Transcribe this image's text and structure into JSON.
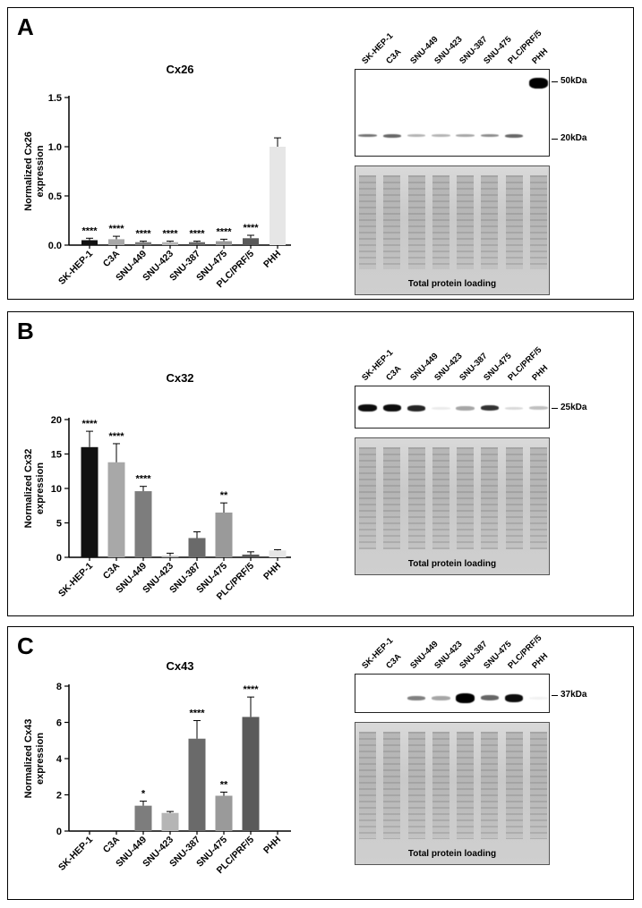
{
  "panels": [
    {
      "letter": "A",
      "blot": {
        "lanes": [
          "SK-HEP-1",
          "C3A",
          "SNU-449",
          "SNU-423",
          "SNU-387",
          "SNU-475",
          "PLC/PRF/5",
          "PHH"
        ],
        "markers": [
          "50kDa",
          "20kDa"
        ],
        "loading_label": "Total protein loading"
      }
    },
    {
      "letter": "B",
      "blot": {
        "lanes": [
          "SK-HEP-1",
          "C3A",
          "SNU-449",
          "SNU-423",
          "SNU-387",
          "SNU-475",
          "PLC/PRF/5",
          "PHH"
        ],
        "markers": [
          "25kDa"
        ],
        "loading_label": "Total protein loading"
      }
    },
    {
      "letter": "C",
      "blot": {
        "lanes": [
          "SK-HEP-1",
          "C3A",
          "SNU-449",
          "SNU-423",
          "SNU-387",
          "SNU-475",
          "PLC/PRF/5",
          "PHH"
        ],
        "markers": [
          "37kDa"
        ],
        "loading_label": "Total protein loading"
      }
    }
  ],
  "chart_data": [
    {
      "type": "bar",
      "title": "Cx26",
      "ylabel": "Normalized Cx26 expression",
      "categories": [
        "SK-HEP-1",
        "C3A",
        "SNU-449",
        "SNU-423",
        "SNU-387",
        "SNU-475",
        "PLC/PRF/5",
        "PHH"
      ],
      "values": [
        0.05,
        0.06,
        0.03,
        0.03,
        0.03,
        0.04,
        0.07,
        1.0
      ],
      "errors": [
        0.02,
        0.03,
        0.01,
        0.01,
        0.01,
        0.02,
        0.03,
        0.09
      ],
      "annotations": [
        "****",
        "****",
        "****",
        "****",
        "****",
        "****",
        "****",
        ""
      ],
      "colors": [
        "#111111",
        "#a8a8a8",
        "#7d7d7d",
        "#b5b5b5",
        "#6a6a6a",
        "#9a9a9a",
        "#5a5a5a",
        "#e6e6e6"
      ],
      "ylim": [
        0,
        1.5
      ],
      "yticks": [
        "0.0",
        "0.5",
        "1.0",
        "1.5"
      ]
    },
    {
      "type": "bar",
      "title": "Cx32",
      "ylabel": "Normalized Cx32 expression",
      "categories": [
        "SK-HEP-1",
        "C3A",
        "SNU-449",
        "SNU-423",
        "SNU-387",
        "SNU-475",
        "PLC/PRF/5",
        "PHH"
      ],
      "values": [
        16.0,
        13.8,
        9.6,
        0.2,
        2.8,
        6.5,
        0.4,
        1.0
      ],
      "errors": [
        2.3,
        2.7,
        0.7,
        0.4,
        0.9,
        1.4,
        0.4,
        0.1
      ],
      "annotations": [
        "****",
        "****",
        "****",
        "",
        "",
        "**",
        "",
        ""
      ],
      "colors": [
        "#111111",
        "#a8a8a8",
        "#7d7d7d",
        "#b5b5b5",
        "#6a6a6a",
        "#9a9a9a",
        "#5a5a5a",
        "#e6e6e6"
      ],
      "ylim": [
        0,
        20
      ],
      "yticks": [
        "0",
        "5",
        "10",
        "15",
        "20"
      ]
    },
    {
      "type": "bar",
      "title": "Cx43",
      "ylabel": "Normalized Cx43 expression",
      "categories": [
        "SK-HEP-1",
        "C3A",
        "SNU-449",
        "SNU-423",
        "SNU-387",
        "SNU-475",
        "PLC/PRF/5",
        "PHH"
      ],
      "values": [
        0,
        0,
        1.4,
        1.0,
        5.1,
        1.95,
        6.3,
        0
      ],
      "errors": [
        0,
        0,
        0.25,
        0.08,
        1.0,
        0.2,
        1.1,
        0
      ],
      "annotations": [
        "",
        "",
        "*",
        "",
        "****",
        "**",
        "****",
        ""
      ],
      "colors": [
        "#111111",
        "#a8a8a8",
        "#7d7d7d",
        "#b5b5b5",
        "#6a6a6a",
        "#9a9a9a",
        "#5a5a5a",
        "#e6e6e6"
      ],
      "ylim": [
        0,
        8
      ],
      "yticks": [
        "0",
        "2",
        "4",
        "6",
        "8"
      ]
    }
  ]
}
